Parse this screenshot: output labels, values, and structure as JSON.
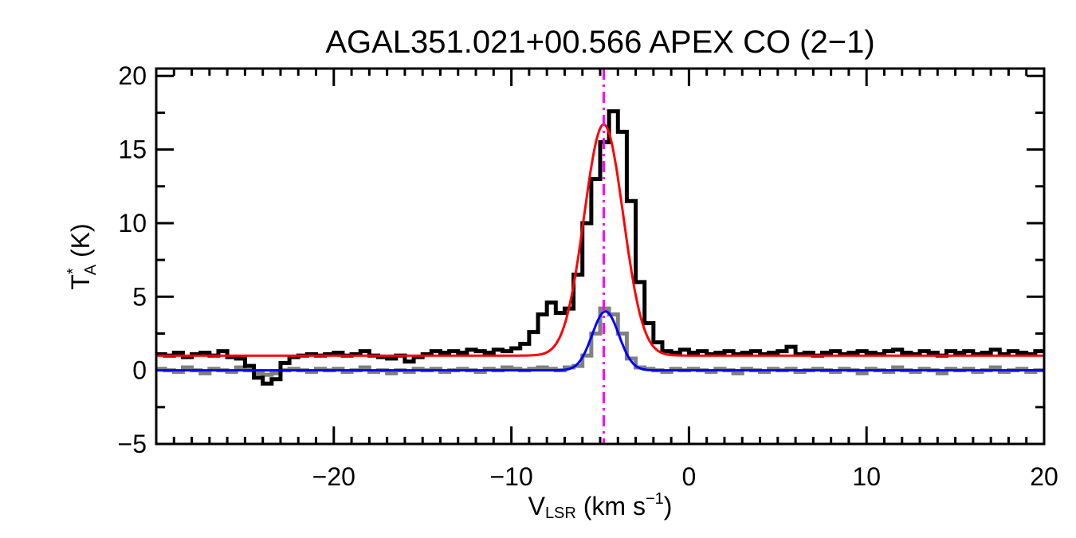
{
  "chart_data": {
    "type": "line",
    "title": "AGAL351.021+00.566  APEX CO (2−1)",
    "xlabel": {
      "main": "V",
      "sub": "LSR",
      "rest": " (km s",
      "sup": "−1",
      "close": ")"
    },
    "ylabel": {
      "main": "T",
      "sup": "*",
      "sub": "A",
      "rest": " (K)"
    },
    "xlim": [
      -30,
      20
    ],
    "ylim": [
      -5,
      20.5
    ],
    "x_ticks": [
      -20,
      -10,
      0,
      10,
      20
    ],
    "x_tick_labels": [
      "−20",
      "−10",
      "0",
      "10",
      "20"
    ],
    "x_minor_step": 1,
    "y_ticks": [
      -5,
      0,
      5,
      10,
      15,
      20
    ],
    "y_tick_labels": [
      "−5",
      "0",
      "5",
      "10",
      "15",
      "20"
    ],
    "y_minor_step": 2.5,
    "grid": false,
    "channel_start": -29.75,
    "channel_step": 0.5,
    "series": [
      {
        "style": "histogram",
        "color": "#000000",
        "values": [
          1.1,
          1.0,
          1.2,
          0.9,
          1.1,
          1.2,
          1.0,
          1.3,
          0.9,
          0.8,
          0.3,
          -0.5,
          -0.9,
          -0.6,
          0.5,
          0.9,
          1.0,
          1.1,
          1.0,
          1.1,
          1.2,
          1.0,
          1.1,
          1.3,
          1.0,
          0.9,
          0.8,
          1.0,
          0.6,
          0.9,
          1.1,
          1.3,
          1.2,
          1.3,
          1.2,
          1.4,
          1.3,
          1.2,
          1.4,
          1.3,
          1.5,
          1.8,
          2.6,
          3.8,
          4.6,
          3.9,
          4.2,
          6.5,
          10.0,
          13.0,
          15.5,
          17.6,
          16.2,
          11.5,
          6.0,
          3.2,
          1.9,
          1.3,
          1.2,
          1.4,
          1.2,
          1.3,
          1.1,
          1.2,
          1.3,
          1.1,
          1.2,
          1.3,
          1.1,
          1.2,
          1.3,
          1.6,
          1.1,
          1.2,
          1.0,
          1.2,
          1.3,
          1.1,
          1.2,
          1.3,
          1.2,
          1.1,
          1.3,
          1.4,
          1.2,
          1.1,
          1.3,
          1.2,
          1.0,
          1.3,
          1.2,
          1.3,
          1.1,
          1.2,
          1.4,
          1.1,
          1.3,
          1.2,
          1.1,
          1.3
        ]
      },
      {
        "style": "histogram",
        "color": "#808080",
        "values": [
          0.1,
          0.0,
          -0.1,
          0.2,
          0.0,
          -0.2,
          0.1,
          0.0,
          -0.1,
          0.2,
          0.0,
          -0.2,
          -0.3,
          -0.2,
          0.0,
          0.1,
          0.0,
          -0.1,
          0.1,
          0.0,
          0.1,
          -0.1,
          0.0,
          0.2,
          -0.1,
          0.0,
          -0.2,
          0.0,
          -0.1,
          0.1,
          0.0,
          0.1,
          -0.1,
          0.0,
          0.1,
          0.0,
          -0.1,
          0.1,
          0.0,
          0.2,
          0.1,
          0.0,
          0.1,
          0.2,
          0.1,
          0.0,
          0.2,
          0.3,
          1.0,
          2.5,
          4.2,
          3.8,
          2.5,
          0.8,
          0.2,
          0.1,
          0.0,
          -0.1,
          0.1,
          0.0,
          0.1,
          0.0,
          -0.1,
          0.1,
          0.0,
          -0.2,
          0.1,
          0.0,
          -0.1,
          0.1,
          0.0,
          0.1,
          -0.1,
          0.0,
          0.1,
          0.0,
          -0.1,
          0.1,
          0.0,
          -0.2,
          0.1,
          0.0,
          -0.1,
          0.2,
          0.0,
          -0.1,
          0.1,
          0.0,
          -0.2,
          0.1,
          0.0,
          0.1,
          -0.1,
          0.0,
          0.2,
          -0.1,
          0.0,
          0.1,
          -0.1,
          0.0
        ]
      },
      {
        "style": "gaussian-fit",
        "color": "#ff0000",
        "baseline": 1.0,
        "amplitude": 15.7,
        "center": -4.8,
        "sigma": 1.1
      },
      {
        "style": "gaussian-fit",
        "color": "#0000ff",
        "baseline": 0.0,
        "amplitude": 4.0,
        "center": -4.7,
        "sigma": 0.75
      }
    ],
    "vline": {
      "x": -4.8,
      "color": "#ff00ff",
      "style": "dash-dot"
    }
  }
}
